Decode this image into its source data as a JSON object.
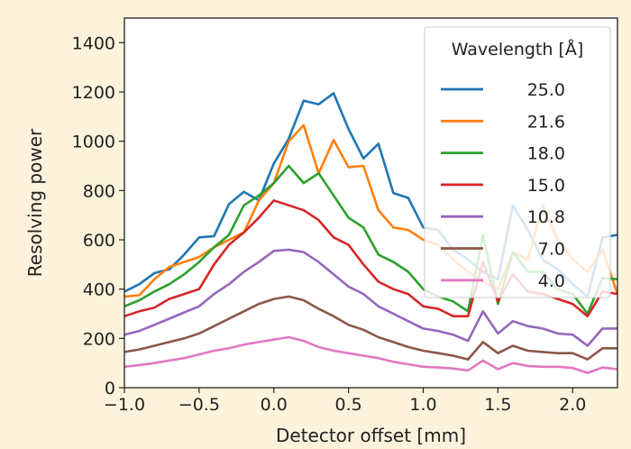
{
  "chart_data": {
    "type": "line",
    "title": "",
    "xlabel": "Detector offset [mm]",
    "ylabel": "Resolving power",
    "xlim": [
      -1.0,
      2.3
    ],
    "ylim": [
      0,
      1500
    ],
    "xticks": [
      -1.0,
      -0.5,
      0.0,
      0.5,
      1.0,
      1.5,
      2.0
    ],
    "xtick_labels": [
      "−1.0",
      "−0.5",
      "0.0",
      "0.5",
      "1.0",
      "1.5",
      "2.0"
    ],
    "yticks": [
      0,
      200,
      400,
      600,
      800,
      1000,
      1200,
      1400
    ],
    "ytick_labels": [
      "0",
      "200",
      "400",
      "600",
      "800",
      "1000",
      "1200",
      "1400"
    ],
    "grid": false,
    "legend": {
      "title": "Wavelength [Å]",
      "placement": "top-right"
    },
    "x": [
      -1.0,
      -0.9,
      -0.8,
      -0.7,
      -0.6,
      -0.5,
      -0.4,
      -0.3,
      -0.2,
      -0.1,
      0.0,
      0.1,
      0.2,
      0.3,
      0.4,
      0.5,
      0.6,
      0.7,
      0.8,
      0.9,
      1.0,
      1.1,
      1.2,
      1.3,
      1.4,
      1.5,
      1.6,
      1.7,
      1.8,
      1.9,
      2.0,
      2.1,
      2.2,
      2.3
    ],
    "series": [
      {
        "name": "25.0",
        "color": "#1f77b4",
        "values": [
          390,
          420,
          465,
          480,
          540,
          610,
          615,
          745,
          795,
          760,
          910,
          1010,
          1165,
          1150,
          1195,
          1050,
          930,
          990,
          790,
          770,
          650,
          640,
          560,
          520,
          470,
          440,
          740,
          640,
          520,
          480,
          420,
          370,
          610,
          620
        ]
      },
      {
        "name": "21.6",
        "color": "#ff7f0e",
        "values": [
          370,
          375,
          440,
          490,
          510,
          530,
          570,
          600,
          630,
          760,
          830,
          1000,
          1065,
          870,
          1005,
          895,
          900,
          720,
          650,
          640,
          600,
          580,
          520,
          470,
          430,
          400,
          550,
          520,
          740,
          600,
          520,
          470,
          560,
          380
        ]
      },
      {
        "name": "18.0",
        "color": "#2ca02c",
        "values": [
          330,
          355,
          390,
          420,
          460,
          510,
          570,
          620,
          740,
          780,
          830,
          900,
          830,
          870,
          780,
          690,
          650,
          540,
          510,
          470,
          400,
          370,
          350,
          310,
          620,
          340,
          550,
          470,
          470,
          400,
          380,
          300,
          445,
          440
        ]
      },
      {
        "name": "15.0",
        "color": "#d62728",
        "values": [
          290,
          310,
          325,
          360,
          380,
          400,
          500,
          580,
          630,
          690,
          760,
          740,
          720,
          680,
          610,
          580,
          500,
          430,
          400,
          380,
          330,
          320,
          290,
          290,
          510,
          350,
          460,
          390,
          380,
          360,
          340,
          290,
          390,
          380
        ]
      },
      {
        "name": "10.8",
        "color": "#9467bd",
        "values": [
          215,
          230,
          255,
          280,
          305,
          330,
          380,
          420,
          470,
          510,
          555,
          560,
          550,
          510,
          460,
          410,
          380,
          330,
          300,
          270,
          240,
          230,
          215,
          190,
          310,
          220,
          270,
          250,
          240,
          220,
          215,
          170,
          240,
          240
        ]
      },
      {
        "name": "7.0",
        "color": "#8c564b",
        "values": [
          145,
          155,
          170,
          185,
          200,
          220,
          250,
          280,
          310,
          340,
          360,
          370,
          355,
          320,
          290,
          255,
          235,
          205,
          185,
          165,
          150,
          140,
          130,
          115,
          185,
          140,
          170,
          150,
          145,
          140,
          140,
          115,
          160,
          160
        ]
      },
      {
        "name": "4.0",
        "color": "#e377c2",
        "values": [
          85,
          92,
          100,
          110,
          120,
          135,
          150,
          160,
          175,
          185,
          195,
          205,
          190,
          165,
          150,
          140,
          130,
          120,
          105,
          95,
          85,
          82,
          78,
          70,
          110,
          75,
          100,
          88,
          85,
          85,
          80,
          60,
          82,
          75
        ]
      }
    ]
  }
}
